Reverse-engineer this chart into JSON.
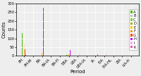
{
  "periods": [
    "PH",
    "PH-M",
    "BA",
    "BA-IA",
    "BA-H",
    "EBA",
    "LBA",
    "LBA-IA",
    "IA",
    "EIA",
    "EIA-HL",
    "ZIA",
    "LIA-H"
  ],
  "teams": [
    "A",
    "B",
    "C",
    "D",
    "E",
    "F",
    "G",
    "H",
    "I",
    "K"
  ],
  "team_colors": [
    "#44bb00",
    "#aaccaa",
    "#88cc44",
    "#aaaa00",
    "#ffcc00",
    "#ff8800",
    "#ff4400",
    "#cc00ff",
    "#ffaaff",
    "#ff44aa"
  ],
  "counts": {
    "A": [
      130,
      0,
      0,
      0,
      0,
      5,
      2,
      0,
      0,
      0,
      0,
      0,
      0
    ],
    "B": [
      0,
      0,
      0,
      0,
      0,
      0,
      0,
      0,
      0,
      0,
      0,
      0,
      0
    ],
    "C": [
      0,
      2,
      5,
      0,
      0,
      5,
      0,
      0,
      0,
      0,
      0,
      0,
      0
    ],
    "D": [
      0,
      0,
      0,
      0,
      0,
      0,
      0,
      0,
      0,
      0,
      0,
      0,
      0
    ],
    "E": [
      80,
      0,
      20,
      0,
      0,
      10,
      0,
      0,
      0,
      0,
      0,
      0,
      0
    ],
    "F": [
      65,
      0,
      30,
      0,
      0,
      75,
      0,
      0,
      0,
      0,
      0,
      0,
      0
    ],
    "G": [
      40,
      0,
      5,
      0,
      0,
      0,
      0,
      0,
      0,
      0,
      0,
      0,
      0
    ],
    "H": [
      5,
      0,
      275,
      0,
      0,
      35,
      0,
      0,
      0,
      0,
      0,
      0,
      0
    ],
    "I": [
      0,
      0,
      0,
      0,
      0,
      0,
      10,
      0,
      0,
      10,
      0,
      0,
      0
    ],
    "K": [
      0,
      0,
      0,
      0,
      0,
      0,
      0,
      0,
      10,
      0,
      0,
      0,
      0
    ]
  },
  "ylabel": "Counts",
  "xlabel": "Period",
  "ylim": [
    0,
    300
  ],
  "yticks": [
    0,
    50,
    100,
    150,
    200,
    250,
    300
  ],
  "title": "",
  "bar_width": 0.055,
  "figsize": [
    2.0,
    1.08
  ],
  "dpi": 100,
  "bg_color": "#eeeeee",
  "legend_fontsize": 3.8,
  "axis_fontsize": 5,
  "tick_fontsize": 3.8
}
